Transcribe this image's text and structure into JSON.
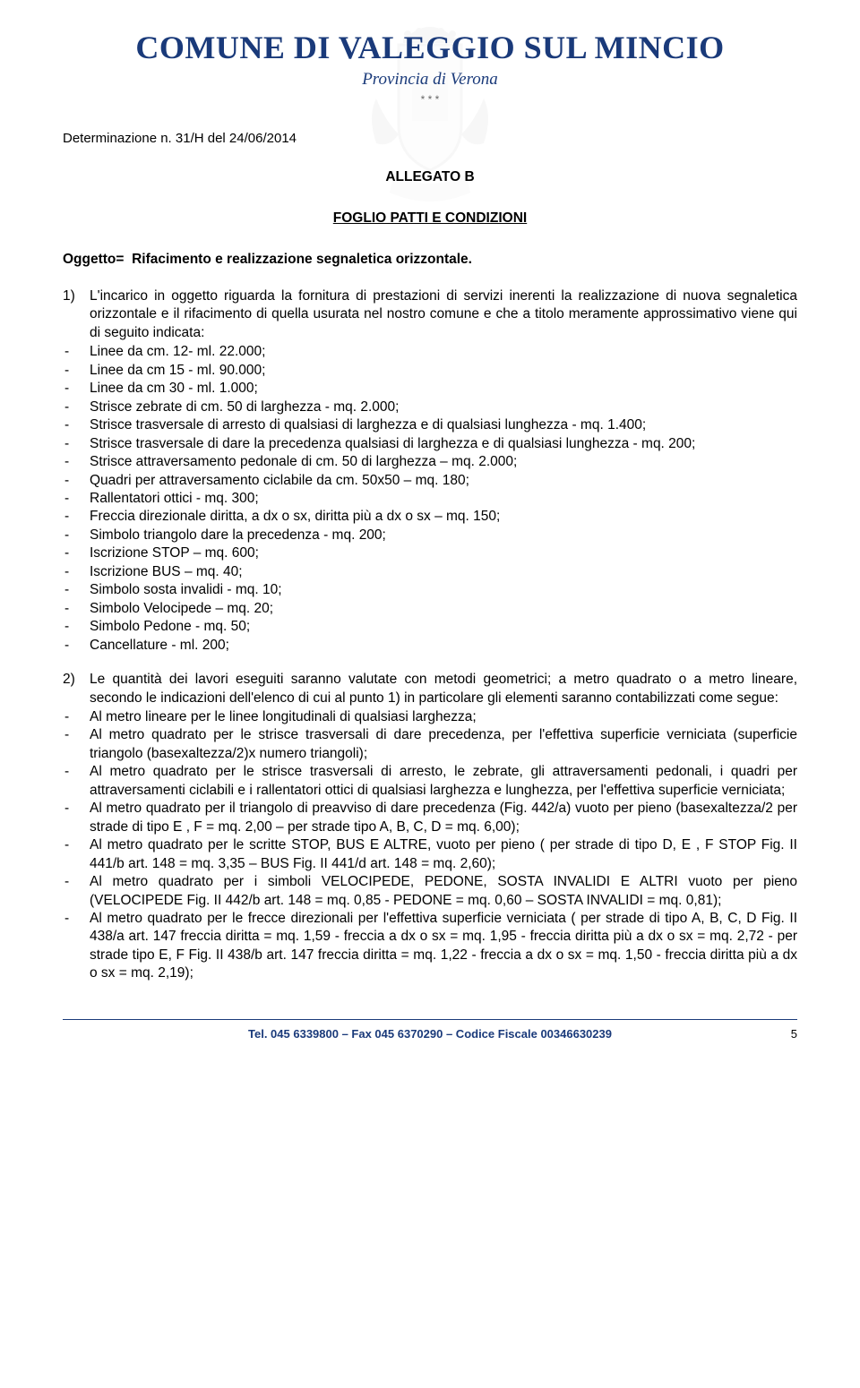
{
  "header": {
    "title": "COMUNE DI VALEGGIO SUL MINCIO",
    "subtitle": "Provincia di Verona",
    "stars": "* * *"
  },
  "det_line": "Determinazione n. 31/H del 24/06/2014",
  "allegato": "ALLEGATO B",
  "foglio": "FOGLIO PATTI E CONDIZIONI",
  "oggetto_label": "Oggetto=",
  "oggetto_text": "Rifacimento e realizzazione segnaletica orizzontale.",
  "sec1": {
    "num": "1)",
    "intro": "L'incarico in oggetto riguarda la fornitura di prestazioni di servizi inerenti la realizzazione di nuova segnaletica orizzontale e il rifacimento di quella usurata nel nostro comune e che a titolo meramente approssimativo viene qui di seguito indicata:",
    "items": [
      "Linee da cm. 12- ml. 22.000;",
      "Linee da cm 15 - ml. 90.000;",
      "Linee da cm 30 - ml. 1.000;",
      "Strisce zebrate di cm. 50 di larghezza - mq. 2.000;",
      "Strisce trasversale di arresto di qualsiasi di larghezza e di qualsiasi lunghezza - mq. 1.400;",
      "Strisce trasversale di dare la precedenza qualsiasi di larghezza e di qualsiasi lunghezza - mq. 200;",
      "Strisce attraversamento pedonale di cm. 50 di larghezza – mq. 2.000;",
      "Quadri per attraversamento ciclabile da cm. 50x50 – mq. 180;",
      "Rallentatori ottici - mq. 300;",
      "Freccia direzionale diritta, a dx o sx, diritta più a dx o sx – mq. 150;",
      "Simbolo triangolo dare la precedenza - mq. 200;",
      "Iscrizione STOP – mq. 600;",
      "Iscrizione BUS – mq. 40;",
      "Simbolo sosta invalidi - mq. 10;",
      "Simbolo Velocipede – mq. 20;",
      "Simbolo Pedone - mq. 50;",
      "Cancellature - ml. 200;"
    ]
  },
  "sec2": {
    "num": "2)",
    "intro": "Le quantità dei lavori eseguiti saranno valutate con metodi geometrici; a metro quadrato o a metro lineare, secondo le indicazioni dell'elenco di cui al punto 1) in particolare gli elementi saranno contabilizzati come segue:",
    "items": [
      "Al metro lineare per le linee longitudinali di qualsiasi larghezza;",
      "Al metro quadrato per le strisce trasversali di dare precedenza, per l'effettiva superficie verniciata (superficie triangolo (basexaltezza/2)x numero triangoli);",
      "Al metro quadrato per le strisce trasversali di arresto, le zebrate, gli attraversamenti pedonali, i quadri per attraversamenti ciclabili e i rallentatori ottici di qualsiasi larghezza e lunghezza, per l'effettiva superficie verniciata;",
      "Al metro quadrato per il triangolo di preavviso di dare precedenza (Fig. 442/a) vuoto per pieno (basexaltezza/2 per strade di tipo E , F = mq. 2,00 – per strade tipo A, B, C, D = mq. 6,00);",
      "Al metro quadrato per le scritte STOP, BUS E ALTRE, vuoto per pieno ( per strade di tipo D, E , F STOP  Fig. II 441/b art. 148 = mq. 3,35 – BUS Fig. II 441/d art. 148 = mq. 2,60);",
      "Al metro quadrato per i simboli VELOCIPEDE, PEDONE, SOSTA INVALIDI E ALTRI vuoto per pieno (VELOCIPEDE Fig. II 442/b art. 148 = mq. 0,85 - PEDONE = mq. 0,60 – SOSTA INVALIDI = mq. 0,81);",
      "Al metro quadrato per le frecce direzionali per l'effettiva superficie verniciata ( per strade di tipo A, B, C, D Fig. II 438/a art. 147 freccia diritta = mq. 1,59 -  freccia a dx o sx = mq. 1,95 -  freccia diritta più a dx o sx = mq. 2,72 - per strade tipo E, F Fig. II 438/b art. 147 freccia diritta = mq. 1,22 -  freccia a dx o sx = mq. 1,50 -  freccia diritta più a dx o sx = mq. 2,19);"
    ]
  },
  "footer": {
    "text": "Tel. 045 6339800 – Fax 045 6370290 – Codice Fiscale 00346630239",
    "page": "5"
  }
}
